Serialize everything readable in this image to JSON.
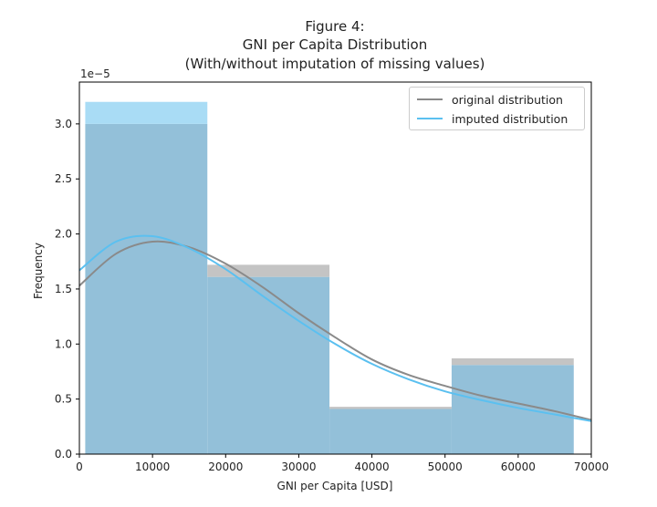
{
  "title_lines": [
    "Figure 4:",
    "GNI per Capita Distribution",
    "(With/without imputation of missing values)"
  ],
  "colors": {
    "original_bar": "#c4c4c4",
    "imputed_bar": "#87ceeb",
    "original_line": "#8a8a8a",
    "imputed_line": "#5bc0f0",
    "overlap_bar": "#93c0d9"
  },
  "chart_data": {
    "type": "bar",
    "title": "Figure 4:\nGNI per Capita Distribution\n(With/without imputation of missing values)",
    "xlabel": "GNI per Capita [USD]",
    "ylabel": "Frequency",
    "y_scale_label": "1e−5",
    "xlim": [
      0,
      70000
    ],
    "ylim": [
      0,
      3.38
    ],
    "y_multiplier": 1e-05,
    "x_ticks": [
      0,
      10000,
      20000,
      30000,
      40000,
      50000,
      60000,
      70000
    ],
    "y_ticks": [
      0.0,
      0.5,
      1.0,
      1.5,
      2.0,
      2.5,
      3.0
    ],
    "y_tick_labels": [
      "0.0",
      "0.5",
      "1.0",
      "1.5",
      "2.0",
      "2.5",
      "3.0"
    ],
    "bin_edges": [
      800,
      17500,
      34200,
      50900,
      67600
    ],
    "series": [
      {
        "name": "original distribution",
        "kind": "histogram",
        "values": [
          3.0,
          1.72,
          0.43,
          0.87
        ]
      },
      {
        "name": "imputed distribution",
        "kind": "histogram",
        "values": [
          3.2,
          1.61,
          0.41,
          0.81
        ]
      }
    ],
    "kde": [
      {
        "name": "original distribution",
        "x": [
          0,
          5000,
          10000,
          15000,
          20000,
          25000,
          30000,
          35000,
          40000,
          45000,
          50000,
          55000,
          60000,
          65000,
          70000
        ],
        "y": [
          1.53,
          1.82,
          1.93,
          1.88,
          1.73,
          1.52,
          1.28,
          1.06,
          0.86,
          0.72,
          0.62,
          0.53,
          0.46,
          0.39,
          0.31
        ]
      },
      {
        "name": "imputed distribution",
        "x": [
          0,
          5000,
          10000,
          15000,
          20000,
          25000,
          30000,
          35000,
          40000,
          45000,
          50000,
          55000,
          60000,
          65000,
          70000
        ],
        "y": [
          1.67,
          1.93,
          1.98,
          1.87,
          1.68,
          1.44,
          1.21,
          1.0,
          0.82,
          0.68,
          0.57,
          0.49,
          0.42,
          0.36,
          0.3
        ]
      }
    ],
    "legend_position": "top-right",
    "grid": false
  }
}
